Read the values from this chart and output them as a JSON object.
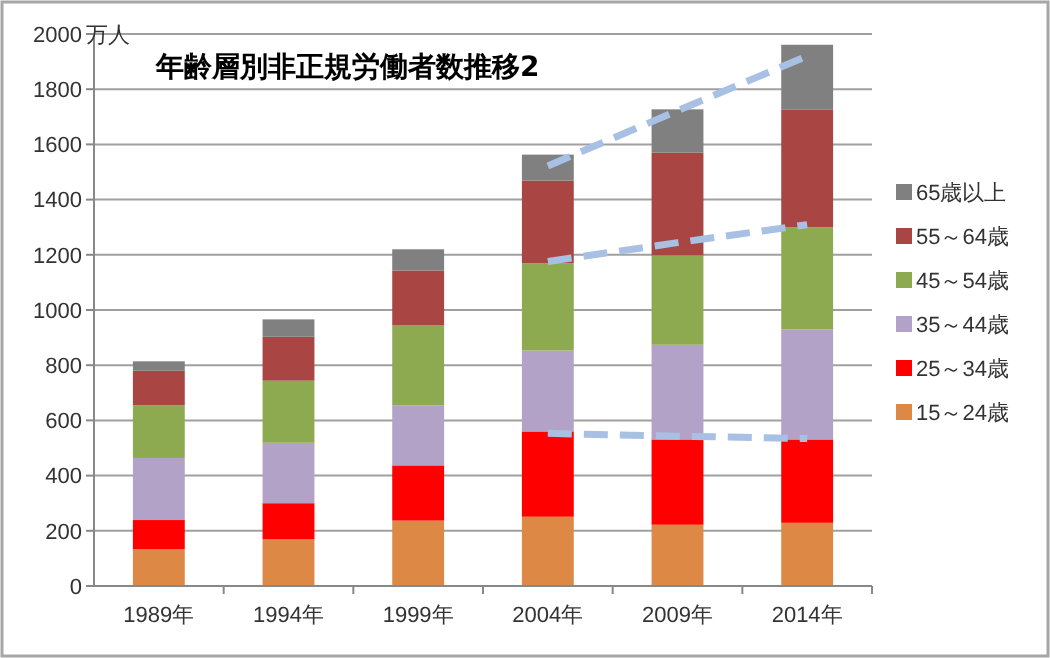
{
  "chart_data": {
    "type": "bar",
    "title": "年齢層別非正規労働者数推移2",
    "ylabel": "万人",
    "categories": [
      "1989年",
      "1994年",
      "1999年",
      "2004年",
      "2009年",
      "2014年"
    ],
    "stacked": true,
    "series": [
      {
        "name": "15～24歳",
        "color": "#dd8844",
        "values": [
          133,
          169,
          237,
          251,
          222,
          229
        ]
      },
      {
        "name": "25～34歳",
        "color": "#ff0000",
        "values": [
          106,
          131,
          200,
          309,
          309,
          302
        ]
      },
      {
        "name": "35～44歳",
        "color": "#b3a2c7",
        "values": [
          225,
          219,
          218,
          293,
          343,
          399
        ]
      },
      {
        "name": "45～54歳",
        "color": "#8eaa50",
        "values": [
          191,
          225,
          289,
          316,
          324,
          370
        ]
      },
      {
        "name": "55～64歳",
        "color": "#a94644",
        "values": [
          125,
          159,
          199,
          300,
          372,
          427
        ]
      },
      {
        "name": "65歳以上",
        "color": "#808080",
        "values": [
          34,
          63,
          77,
          94,
          157,
          234
        ]
      },
      {
        "type": "line",
        "color": "#a7c0e4",
        "line_style": "dashed",
        "marker": "none",
        "values": [
          null,
          null,
          null,
          1522,
          1722,
          1920
        ]
      },
      {
        "type": "line",
        "color": "#a7c0e4",
        "line_style": "dashed",
        "marker": "none",
        "values": [
          null,
          null,
          null,
          1176,
          1244,
          1309
        ]
      },
      {
        "type": "line",
        "color": "#a7c0e4",
        "line_style": "dashed",
        "marker": "none",
        "values": [
          null,
          null,
          null,
          553,
          543,
          534
        ]
      }
    ],
    "ylim": [
      0,
      2000
    ],
    "yticks": [
      0,
      200,
      400,
      600,
      800,
      1000,
      1200,
      1400,
      1600,
      1800,
      2000
    ],
    "grid": "y",
    "legend": "right"
  }
}
